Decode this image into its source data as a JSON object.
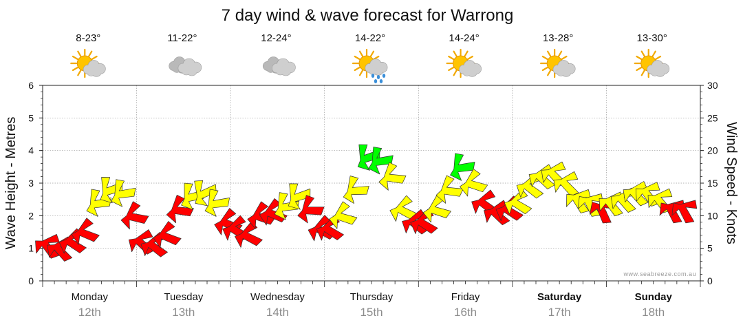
{
  "chart_data": {
    "type": "line",
    "title": "7 day wind & wave forecast for Warrong",
    "ylabel_left": "Wave Height - Metres",
    "ylabel_right": "Wind Speed - Knots",
    "ylim_left": [
      0,
      6
    ],
    "ylim_right": [
      0,
      30
    ],
    "yticks_left": [
      "0",
      "1",
      "2",
      "3",
      "4",
      "5",
      "6"
    ],
    "yticks_right": [
      "0",
      "5",
      "10",
      "15",
      "20",
      "25",
      "30"
    ],
    "watermark": "www.seabreeze.com.au",
    "colors": {
      "low": "#ff0000",
      "medium": "#ffff00",
      "high": "#00ff00"
    },
    "days": [
      {
        "day": "Monday",
        "date": "12th",
        "temp": "8-23°",
        "icon": "sun-cloud-icon",
        "bold": false
      },
      {
        "day": "Tuesday",
        "date": "13th",
        "temp": "11-22°",
        "icon": "cloud-icon",
        "bold": false
      },
      {
        "day": "Wednesday",
        "date": "14th",
        "temp": "12-24°",
        "icon": "cloud-icon",
        "bold": false
      },
      {
        "day": "Thursday",
        "date": "15th",
        "temp": "14-22°",
        "icon": "sun-rain-icon",
        "bold": false
      },
      {
        "day": "Friday",
        "date": "16th",
        "temp": "14-24°",
        "icon": "sun-cloud-icon",
        "bold": false
      },
      {
        "day": "Saturday",
        "date": "17th",
        "temp": "13-28°",
        "icon": "sun-cloud-icon",
        "bold": true
      },
      {
        "day": "Sunday",
        "date": "18th",
        "temp": "13-30°",
        "icon": "sun-cloud-icon",
        "bold": true
      }
    ],
    "series": [
      {
        "name": "Wind speed (knots) with direction arrows",
        "unit": "knots",
        "points": [
          {
            "t": 0.05,
            "speed": 5.5,
            "dir": 260,
            "level": "low"
          },
          {
            "t": 0.18,
            "speed": 5,
            "dir": 255,
            "level": "low"
          },
          {
            "t": 0.31,
            "speed": 6,
            "dir": 240,
            "level": "low"
          },
          {
            "t": 0.44,
            "speed": 7.5,
            "dir": 230,
            "level": "low"
          },
          {
            "t": 0.57,
            "speed": 12,
            "dir": 200,
            "level": "medium"
          },
          {
            "t": 0.7,
            "speed": 14,
            "dir": 190,
            "level": "medium"
          },
          {
            "t": 0.83,
            "speed": 13.5,
            "dir": 200,
            "level": "medium"
          },
          {
            "t": 0.96,
            "speed": 10,
            "dir": 220,
            "level": "low"
          },
          {
            "t": 1.05,
            "speed": 6,
            "dir": 250,
            "level": "low"
          },
          {
            "t": 1.18,
            "speed": 5.5,
            "dir": 245,
            "level": "low"
          },
          {
            "t": 1.31,
            "speed": 7,
            "dir": 230,
            "level": "low"
          },
          {
            "t": 1.44,
            "speed": 11,
            "dir": 215,
            "level": "low"
          },
          {
            "t": 1.57,
            "speed": 13,
            "dir": 195,
            "level": "medium"
          },
          {
            "t": 1.7,
            "speed": 13.5,
            "dir": 185,
            "level": "medium"
          },
          {
            "t": 1.83,
            "speed": 12,
            "dir": 200,
            "level": "medium"
          },
          {
            "t": 1.96,
            "speed": 9,
            "dir": 230,
            "level": "low"
          },
          {
            "t": 2.05,
            "speed": 8,
            "dir": 240,
            "level": "low"
          },
          {
            "t": 2.18,
            "speed": 7,
            "dir": 235,
            "level": "low"
          },
          {
            "t": 2.31,
            "speed": 10,
            "dir": 225,
            "level": "low"
          },
          {
            "t": 2.44,
            "speed": 10.5,
            "dir": 230,
            "level": "low"
          },
          {
            "t": 2.57,
            "speed": 11.5,
            "dir": 200,
            "level": "medium"
          },
          {
            "t": 2.7,
            "speed": 13,
            "dir": 190,
            "level": "medium"
          },
          {
            "t": 2.83,
            "speed": 11,
            "dir": 210,
            "level": "low"
          },
          {
            "t": 2.96,
            "speed": 8,
            "dir": 235,
            "level": "low"
          },
          {
            "t": 3.05,
            "speed": 8,
            "dir": 240,
            "level": "low"
          },
          {
            "t": 3.18,
            "speed": 10,
            "dir": 225,
            "level": "medium"
          },
          {
            "t": 3.31,
            "speed": 14,
            "dir": 205,
            "level": "medium"
          },
          {
            "t": 3.44,
            "speed": 19,
            "dir": 190,
            "level": "high"
          },
          {
            "t": 3.57,
            "speed": 18.5,
            "dir": 200,
            "level": "high"
          },
          {
            "t": 3.7,
            "speed": 16,
            "dir": 215,
            "level": "medium"
          },
          {
            "t": 3.83,
            "speed": 11,
            "dir": 235,
            "level": "medium"
          },
          {
            "t": 3.96,
            "speed": 9,
            "dir": 245,
            "level": "low"
          },
          {
            "t": 4.05,
            "speed": 9,
            "dir": 240,
            "level": "low"
          },
          {
            "t": 4.18,
            "speed": 11,
            "dir": 225,
            "level": "medium"
          },
          {
            "t": 4.31,
            "speed": 14,
            "dir": 215,
            "level": "medium"
          },
          {
            "t": 4.44,
            "speed": 17.5,
            "dir": 200,
            "level": "high"
          },
          {
            "t": 4.57,
            "speed": 15,
            "dir": 225,
            "level": "medium"
          },
          {
            "t": 4.7,
            "speed": 12,
            "dir": 245,
            "level": "low"
          },
          {
            "t": 4.83,
            "speed": 10.5,
            "dir": 250,
            "level": "low"
          },
          {
            "t": 4.96,
            "speed": 11,
            "dir": 240,
            "level": "low"
          },
          {
            "t": 5.05,
            "speed": 12,
            "dir": 240,
            "level": "medium"
          },
          {
            "t": 5.18,
            "speed": 14.5,
            "dir": 245,
            "level": "medium"
          },
          {
            "t": 5.31,
            "speed": 16,
            "dir": 250,
            "level": "medium"
          },
          {
            "t": 5.44,
            "speed": 16.5,
            "dir": 255,
            "level": "medium"
          },
          {
            "t": 5.57,
            "speed": 15,
            "dir": 255,
            "level": "medium"
          },
          {
            "t": 5.7,
            "speed": 12.5,
            "dir": 265,
            "level": "medium"
          },
          {
            "t": 5.83,
            "speed": 12,
            "dir": 270,
            "level": "medium"
          },
          {
            "t": 5.96,
            "speed": 11,
            "dir": 275,
            "level": "low"
          },
          {
            "t": 6.05,
            "speed": 12,
            "dir": 260,
            "level": "medium"
          },
          {
            "t": 6.18,
            "speed": 12.5,
            "dir": 255,
            "level": "medium"
          },
          {
            "t": 6.31,
            "speed": 13.5,
            "dir": 255,
            "level": "medium"
          },
          {
            "t": 6.44,
            "speed": 13.5,
            "dir": 260,
            "level": "medium"
          },
          {
            "t": 6.57,
            "speed": 12.5,
            "dir": 260,
            "level": "medium"
          },
          {
            "t": 6.7,
            "speed": 11,
            "dir": 270,
            "level": "low"
          },
          {
            "t": 6.83,
            "speed": 11,
            "dir": 270,
            "level": "low"
          }
        ]
      }
    ]
  }
}
